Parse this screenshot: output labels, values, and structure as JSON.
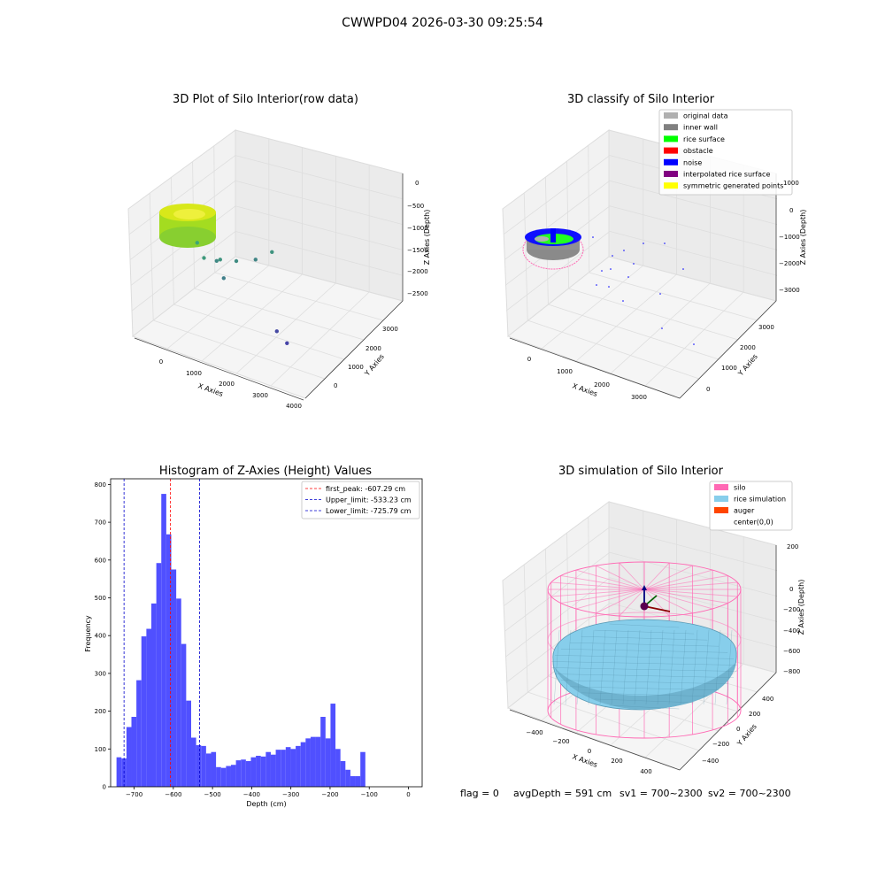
{
  "figure_title": "CWWPD04 2026-03-30 09:25:54",
  "status": {
    "flag": "flag = 0",
    "avg_depth": "avgDepth = 591 cm",
    "sv1": "sv1 = 700~2300",
    "sv2": "sv2 = 700~2300"
  },
  "colors": {
    "bar": "#5050ff",
    "first_peak_line": "#ff0000",
    "limit_line": "#0000cc",
    "original": "#b0b0b0",
    "inner_wall": "#808080",
    "rice_surface": "#00ff00",
    "obstacle": "#ff0000",
    "noise": "#0000ff",
    "interpolated": "#800080",
    "symmetric": "#ffff00",
    "silo": "#ff69b4",
    "rice_sim": "#87ceeb",
    "auger": "#ff4500"
  },
  "chart_data": [
    {
      "type": "scatter3d",
      "title": "3D Plot of Silo Interior(row data)",
      "xlabel": "X Axies",
      "ylabel": "Y Axies",
      "zlabel": "Z Axies (Depth)",
      "x_ticks": [
        "0",
        "1000",
        "2000",
        "3000",
        "4000"
      ],
      "y_ticks": [
        "0",
        "1000",
        "2000",
        "3000"
      ],
      "z_ticks": [
        "0",
        "−500",
        "−1000",
        "−1500",
        "−2000",
        "−2500"
      ],
      "cluster": {
        "x_range": [
          -600,
          600
        ],
        "y_range": [
          -600,
          600
        ],
        "depth": [
          -500,
          -800
        ]
      },
      "outliers": [
        {
          "x": 900,
          "y": 200,
          "z": -1200
        },
        {
          "x": 1200,
          "y": 100,
          "z": -1400
        },
        {
          "x": 1500,
          "y": 300,
          "z": -1500
        },
        {
          "x": 1800,
          "y": 500,
          "z": -1600
        },
        {
          "x": 2100,
          "y": 800,
          "z": -1700
        },
        {
          "x": 2500,
          "y": 900,
          "z": -1500
        },
        {
          "x": 1300,
          "y": 400,
          "z": -1650
        },
        {
          "x": 1700,
          "y": 200,
          "z": -1800
        },
        {
          "x": 3300,
          "y": 200,
          "z": -2600
        },
        {
          "x": 3700,
          "y": 100,
          "z": -2700
        }
      ]
    },
    {
      "type": "scatter3d",
      "title": "3D classify of Silo Interior",
      "zlabel": "Z Axies (Depth)",
      "xlabel": "X Axies",
      "ylabel": "Y Axies",
      "x_ticks": [
        "0",
        "1000",
        "2000",
        "3000"
      ],
      "y_ticks": [
        "0",
        "1000",
        "2000",
        "3000"
      ],
      "z_ticks": [
        "1000",
        "0",
        "−1000",
        "−2000",
        "−3000"
      ],
      "legend": [
        {
          "label": "original data",
          "color": "#b0b0b0"
        },
        {
          "label": "inner wall",
          "color": "#808080"
        },
        {
          "label": "rice surface",
          "color": "#00ff00"
        },
        {
          "label": "obstacle",
          "color": "#ff0000"
        },
        {
          "label": "noise",
          "color": "#0000ff"
        },
        {
          "label": "interpolated rice surface",
          "color": "#800080"
        },
        {
          "label": "symmetric generated points",
          "color": "#ffff00"
        }
      ],
      "legend_position": "top-right"
    },
    {
      "type": "bar",
      "title": "Histogram of Z-Axies (Height) Values",
      "xlabel": "Depth (cm)",
      "ylabel": "Frequency",
      "xlim": [
        -760,
        35
      ],
      "ylim": [
        0,
        815
      ],
      "x_ticks": [
        -700,
        -600,
        -500,
        -400,
        -300,
        -200,
        -100,
        0
      ],
      "y_ticks": [
        0,
        100,
        200,
        300,
        400,
        500,
        600,
        700,
        800
      ],
      "x_tick_labels": [
        "−700",
        "−600",
        "−500",
        "−400",
        "−300",
        "−200",
        "−100",
        "0"
      ],
      "y_tick_labels": [
        "0",
        "100",
        "200",
        "300",
        "400",
        "500",
        "600",
        "700",
        "800"
      ],
      "bin_start": -745,
      "bin_width": 12.7,
      "values": [
        78,
        75,
        158,
        185,
        282,
        398,
        418,
        485,
        592,
        775,
        668,
        575,
        498,
        378,
        228,
        130,
        110,
        108,
        88,
        92,
        52,
        50,
        55,
        58,
        70,
        72,
        68,
        78,
        82,
        80,
        92,
        85,
        98,
        98,
        105,
        100,
        108,
        118,
        128,
        132,
        132,
        185,
        128,
        220,
        100,
        68,
        45,
        28,
        28,
        92
      ],
      "vlines": [
        {
          "x": -607.29,
          "label": "first_peak: -607.29 cm",
          "color": "#ff0000"
        },
        {
          "x": -533.23,
          "label": "Upper_limit: -533.23 cm",
          "color": "#0000cc"
        },
        {
          "x": -725.79,
          "label": "Lower_limit: -725.79 cm",
          "color": "#0000cc"
        }
      ],
      "legend_position": "top-right"
    },
    {
      "type": "surface3d",
      "title": "3D simulation of Silo Interior",
      "xlabel": "X Axies",
      "ylabel": "Y Axies",
      "zlabel": "Z Axies (Depth)",
      "x_ticks": [
        "−400",
        "−200",
        "0",
        "200",
        "400"
      ],
      "y_ticks": [
        "400",
        "200",
        "0",
        "−200",
        "−400"
      ],
      "z_ticks": [
        "200",
        "0",
        "−200",
        "−400",
        "−600",
        "−800"
      ],
      "legend": [
        {
          "label": "silo",
          "color": "#ff69b4"
        },
        {
          "label": "rice simulation",
          "color": "#87ceeb"
        },
        {
          "label": "auger",
          "color": "#ff4500"
        },
        {
          "label": "center(0,0)",
          "color": "#ffffff"
        }
      ],
      "legend_position": "top-right"
    }
  ]
}
